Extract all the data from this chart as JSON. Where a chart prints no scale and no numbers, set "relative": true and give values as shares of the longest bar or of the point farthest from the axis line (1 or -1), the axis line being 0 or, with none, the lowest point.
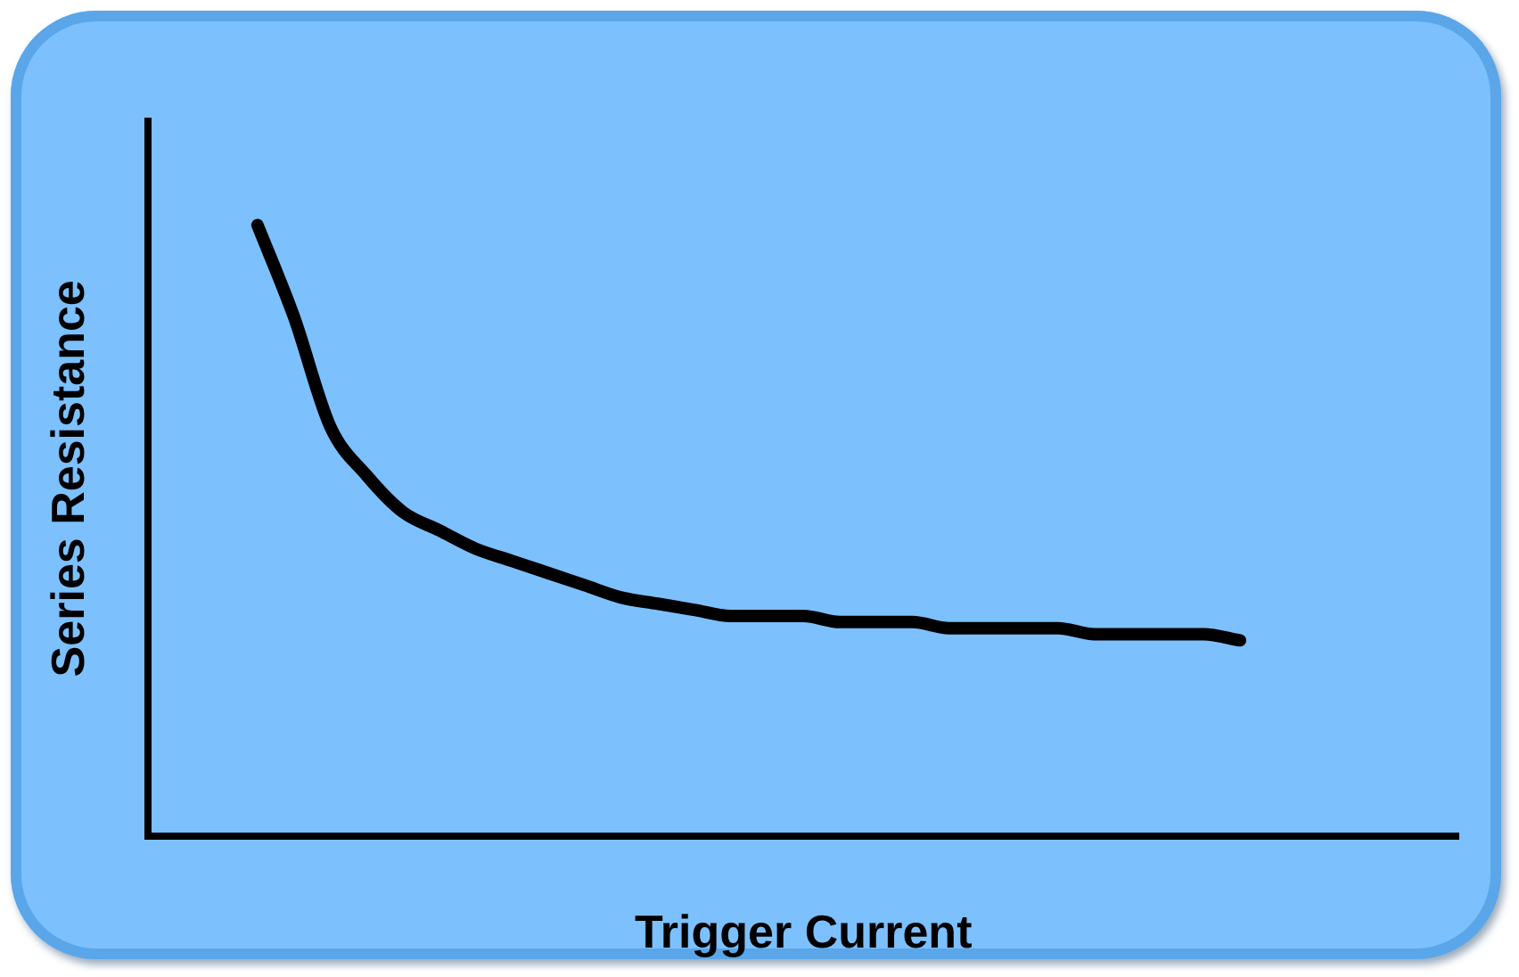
{
  "chart_data": {
    "type": "line",
    "relative": true,
    "xlabel": "Trigger Current",
    "ylabel": "Series Resistance",
    "tick_labels": false,
    "grid": false,
    "legend": false,
    "marker": "none",
    "line_style": "solid",
    "categories": [
      null,
      null,
      null,
      null,
      null,
      null,
      null,
      null,
      null,
      null,
      null,
      null,
      null,
      null,
      null,
      null,
      null,
      null,
      null,
      null,
      null,
      null,
      null,
      null,
      null,
      null,
      null,
      null,
      null,
      null,
      null,
      null,
      null,
      null,
      null,
      null,
      null
    ],
    "series": [
      {
        "color": "#000000",
        "values": [
          null,
          null,
          null,
          1.0,
          0.85,
          0.67,
          0.59,
          0.53,
          0.5,
          0.47,
          0.45,
          0.43,
          0.41,
          0.39,
          0.38,
          0.37,
          0.36,
          0.36,
          0.36,
          0.35,
          0.35,
          0.35,
          0.34,
          0.34,
          0.34,
          0.34,
          0.33,
          0.33,
          0.33,
          0.33,
          0.32,
          null,
          null,
          null,
          null,
          null,
          null
        ]
      }
    ]
  }
}
